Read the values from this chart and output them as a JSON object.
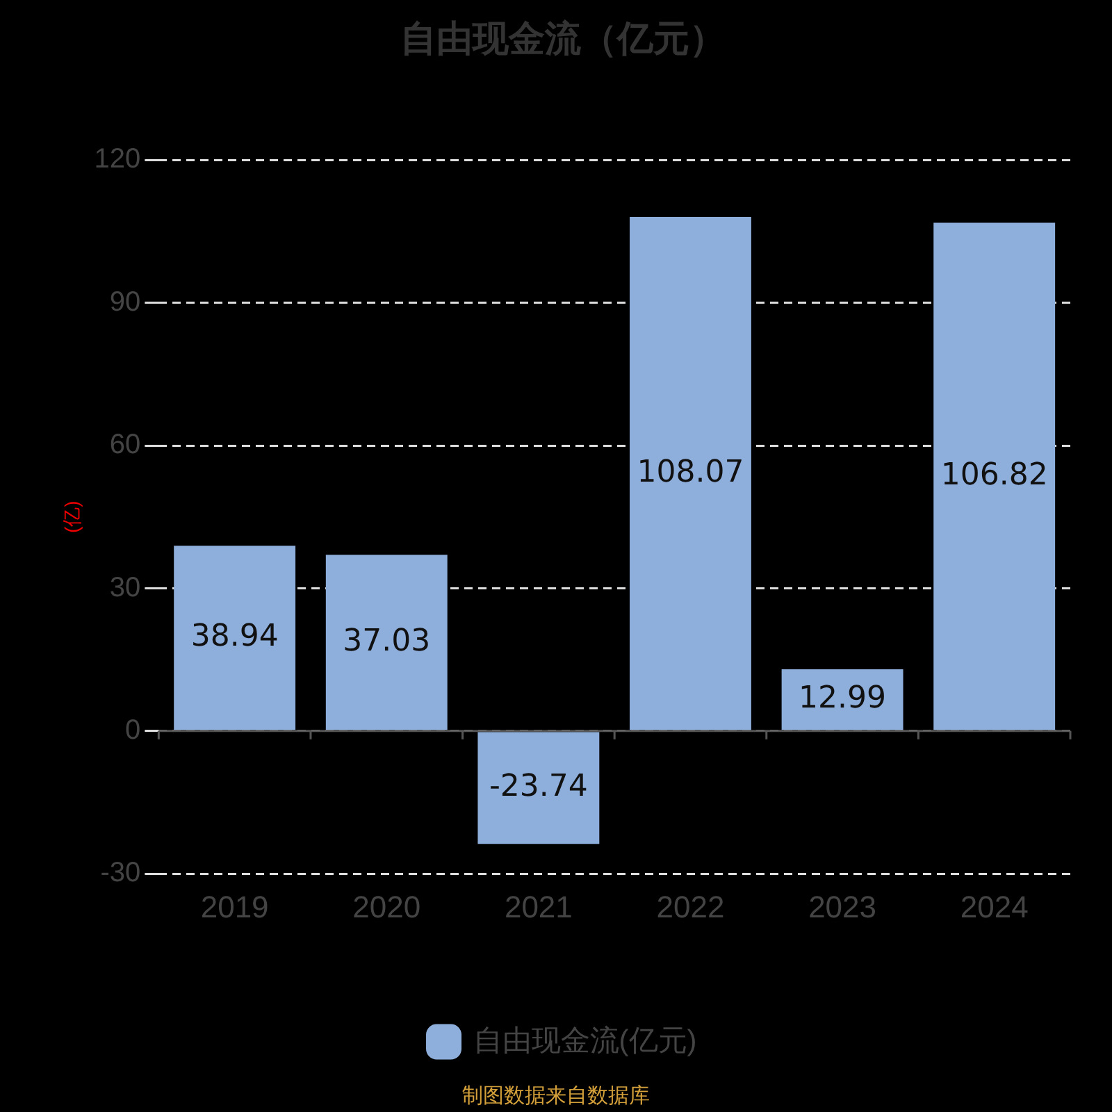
{
  "chart_data": {
    "type": "bar",
    "title": "自由现金流（亿元）",
    "ylabel": "(亿)",
    "categories": [
      "2019",
      "2020",
      "2021",
      "2022",
      "2023",
      "2024"
    ],
    "series": [
      {
        "name": "自由现金流(亿元)",
        "color": "#8eaedb",
        "values": [
          38.94,
          37.03,
          -23.74,
          108.07,
          12.99,
          106.82
        ]
      }
    ],
    "ylim": [
      -30,
      120
    ],
    "yticks": [
      -30,
      0,
      30,
      60,
      90,
      120
    ],
    "grid": "y",
    "legend": "bottom",
    "data_labels": true,
    "annotations": [
      "制图数据来自数据库"
    ]
  }
}
